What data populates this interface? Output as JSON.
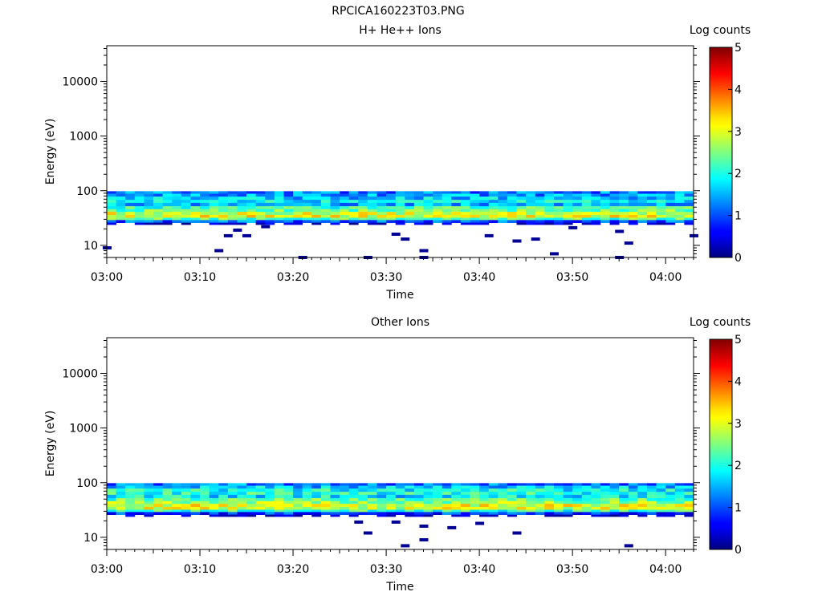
{
  "figure": {
    "title": "RPCICA160223T03.PNG"
  },
  "chart_data": [
    {
      "type": "heatmap",
      "title": "H+ He++ Ions",
      "xlabel": "Time",
      "ylabel": "Energy (eV)",
      "x_ticks": [
        "03:00",
        "03:10",
        "03:20",
        "03:30",
        "03:40",
        "03:50",
        "04:00"
      ],
      "x_range": [
        "03:00",
        "04:03"
      ],
      "y_scale": "log",
      "y_ticks": [
        10,
        100,
        1000,
        10000
      ],
      "y_range": [
        6,
        45000
      ],
      "colorbar": {
        "label": "Log counts",
        "range": [
          0,
          5
        ],
        "ticks": [
          0,
          1,
          2,
          3,
          4,
          5
        ],
        "colormap": "jet"
      },
      "bands": [
        {
          "energy_range_ev": [
            88,
            98
          ],
          "log_counts": 1.2
        },
        {
          "energy_range_ev": [
            78,
            88
          ],
          "log_counts": 1.4
        },
        {
          "energy_range_ev": [
            68,
            78
          ],
          "log_counts": 1.6
        },
        {
          "energy_range_ev": [
            60,
            68
          ],
          "log_counts": 1.8
        },
        {
          "energy_range_ev": [
            52,
            60
          ],
          "log_counts": 1.5
        },
        {
          "energy_range_ev": [
            46,
            52
          ],
          "log_counts": 2.2
        },
        {
          "energy_range_ev": [
            41,
            46
          ],
          "log_counts": 2.4
        },
        {
          "energy_range_ev": [
            36,
            41
          ],
          "log_counts": 2.9
        },
        {
          "energy_range_ev": [
            32,
            36
          ],
          "log_counts": 3.0
        },
        {
          "energy_range_ev": [
            29,
            32
          ],
          "log_counts": 2.3
        },
        {
          "energy_range_ev": [
            26,
            29
          ],
          "log_counts": 1.1
        },
        {
          "energy_range_ev": [
            24,
            26
          ],
          "log_counts": 0.2
        }
      ],
      "sparse_counts": [
        {
          "time": "03:00",
          "energy_ev": 9,
          "log_counts": 0.1
        },
        {
          "time": "03:12",
          "energy_ev": 8,
          "log_counts": 0.1
        },
        {
          "time": "03:13",
          "energy_ev": 15,
          "log_counts": 0.1
        },
        {
          "time": "03:14",
          "energy_ev": 19,
          "log_counts": 0.1
        },
        {
          "time": "03:15",
          "energy_ev": 15,
          "log_counts": 0.1
        },
        {
          "time": "03:17",
          "energy_ev": 22,
          "log_counts": 0.1
        },
        {
          "time": "03:21",
          "energy_ev": 6,
          "log_counts": 0.1
        },
        {
          "time": "03:28",
          "energy_ev": 6,
          "log_counts": 0.1
        },
        {
          "time": "03:31",
          "energy_ev": 16,
          "log_counts": 0.1
        },
        {
          "time": "03:32",
          "energy_ev": 13,
          "log_counts": 0.1
        },
        {
          "time": "03:34",
          "energy_ev": 8,
          "log_counts": 0.1
        },
        {
          "time": "03:34",
          "energy_ev": 6,
          "log_counts": 0.1
        },
        {
          "time": "03:41",
          "energy_ev": 15,
          "log_counts": 0.1
        },
        {
          "time": "03:44",
          "energy_ev": 12,
          "log_counts": 0.1
        },
        {
          "time": "03:46",
          "energy_ev": 13,
          "log_counts": 0.1
        },
        {
          "time": "03:48",
          "energy_ev": 7,
          "log_counts": 0.1
        },
        {
          "time": "03:50",
          "energy_ev": 21,
          "log_counts": 0.1
        },
        {
          "time": "03:55",
          "energy_ev": 6,
          "log_counts": 0.1
        },
        {
          "time": "03:55",
          "energy_ev": 18,
          "log_counts": 0.1
        },
        {
          "time": "03:56",
          "energy_ev": 11,
          "log_counts": 0.1
        },
        {
          "time": "04:03",
          "energy_ev": 15,
          "log_counts": 0.1
        }
      ]
    },
    {
      "type": "heatmap",
      "title": "Other Ions",
      "xlabel": "Time",
      "ylabel": "Energy (eV)",
      "x_ticks": [
        "03:00",
        "03:10",
        "03:20",
        "03:30",
        "03:40",
        "03:50",
        "04:00"
      ],
      "x_range": [
        "03:00",
        "04:03"
      ],
      "y_scale": "log",
      "y_ticks": [
        10,
        100,
        1000,
        10000
      ],
      "y_range": [
        6,
        45000
      ],
      "colorbar": {
        "label": "Log counts",
        "range": [
          0,
          5
        ],
        "ticks": [
          0,
          1,
          2,
          3,
          4,
          5
        ],
        "colormap": "jet"
      },
      "bands": [
        {
          "energy_range_ev": [
            88,
            98
          ],
          "log_counts": 1.2
        },
        {
          "energy_range_ev": [
            78,
            88
          ],
          "log_counts": 1.6
        },
        {
          "energy_range_ev": [
            68,
            78
          ],
          "log_counts": 1.9
        },
        {
          "energy_range_ev": [
            60,
            68
          ],
          "log_counts": 2.0
        },
        {
          "energy_range_ev": [
            52,
            60
          ],
          "log_counts": 1.8
        },
        {
          "energy_range_ev": [
            46,
            52
          ],
          "log_counts": 2.3
        },
        {
          "energy_range_ev": [
            41,
            46
          ],
          "log_counts": 2.6
        },
        {
          "energy_range_ev": [
            36,
            41
          ],
          "log_counts": 3.0
        },
        {
          "energy_range_ev": [
            32,
            36
          ],
          "log_counts": 2.9
        },
        {
          "energy_range_ev": [
            29,
            32
          ],
          "log_counts": 2.1
        },
        {
          "energy_range_ev": [
            26,
            29
          ],
          "log_counts": 0.9
        },
        {
          "energy_range_ev": [
            24,
            26
          ],
          "log_counts": 0.2
        }
      ],
      "sparse_counts": [
        {
          "time": "03:27",
          "energy_ev": 19,
          "log_counts": 0.1
        },
        {
          "time": "03:28",
          "energy_ev": 12,
          "log_counts": 0.1
        },
        {
          "time": "03:31",
          "energy_ev": 19,
          "log_counts": 0.1
        },
        {
          "time": "03:32",
          "energy_ev": 7,
          "log_counts": 0.1
        },
        {
          "time": "03:34",
          "energy_ev": 16,
          "log_counts": 0.1
        },
        {
          "time": "03:34",
          "energy_ev": 9,
          "log_counts": 0.1
        },
        {
          "time": "03:37",
          "energy_ev": 15,
          "log_counts": 0.1
        },
        {
          "time": "03:40",
          "energy_ev": 18,
          "log_counts": 0.1
        },
        {
          "time": "03:44",
          "energy_ev": 12,
          "log_counts": 0.1
        },
        {
          "time": "03:56",
          "energy_ev": 7,
          "log_counts": 0.1
        }
      ]
    }
  ]
}
